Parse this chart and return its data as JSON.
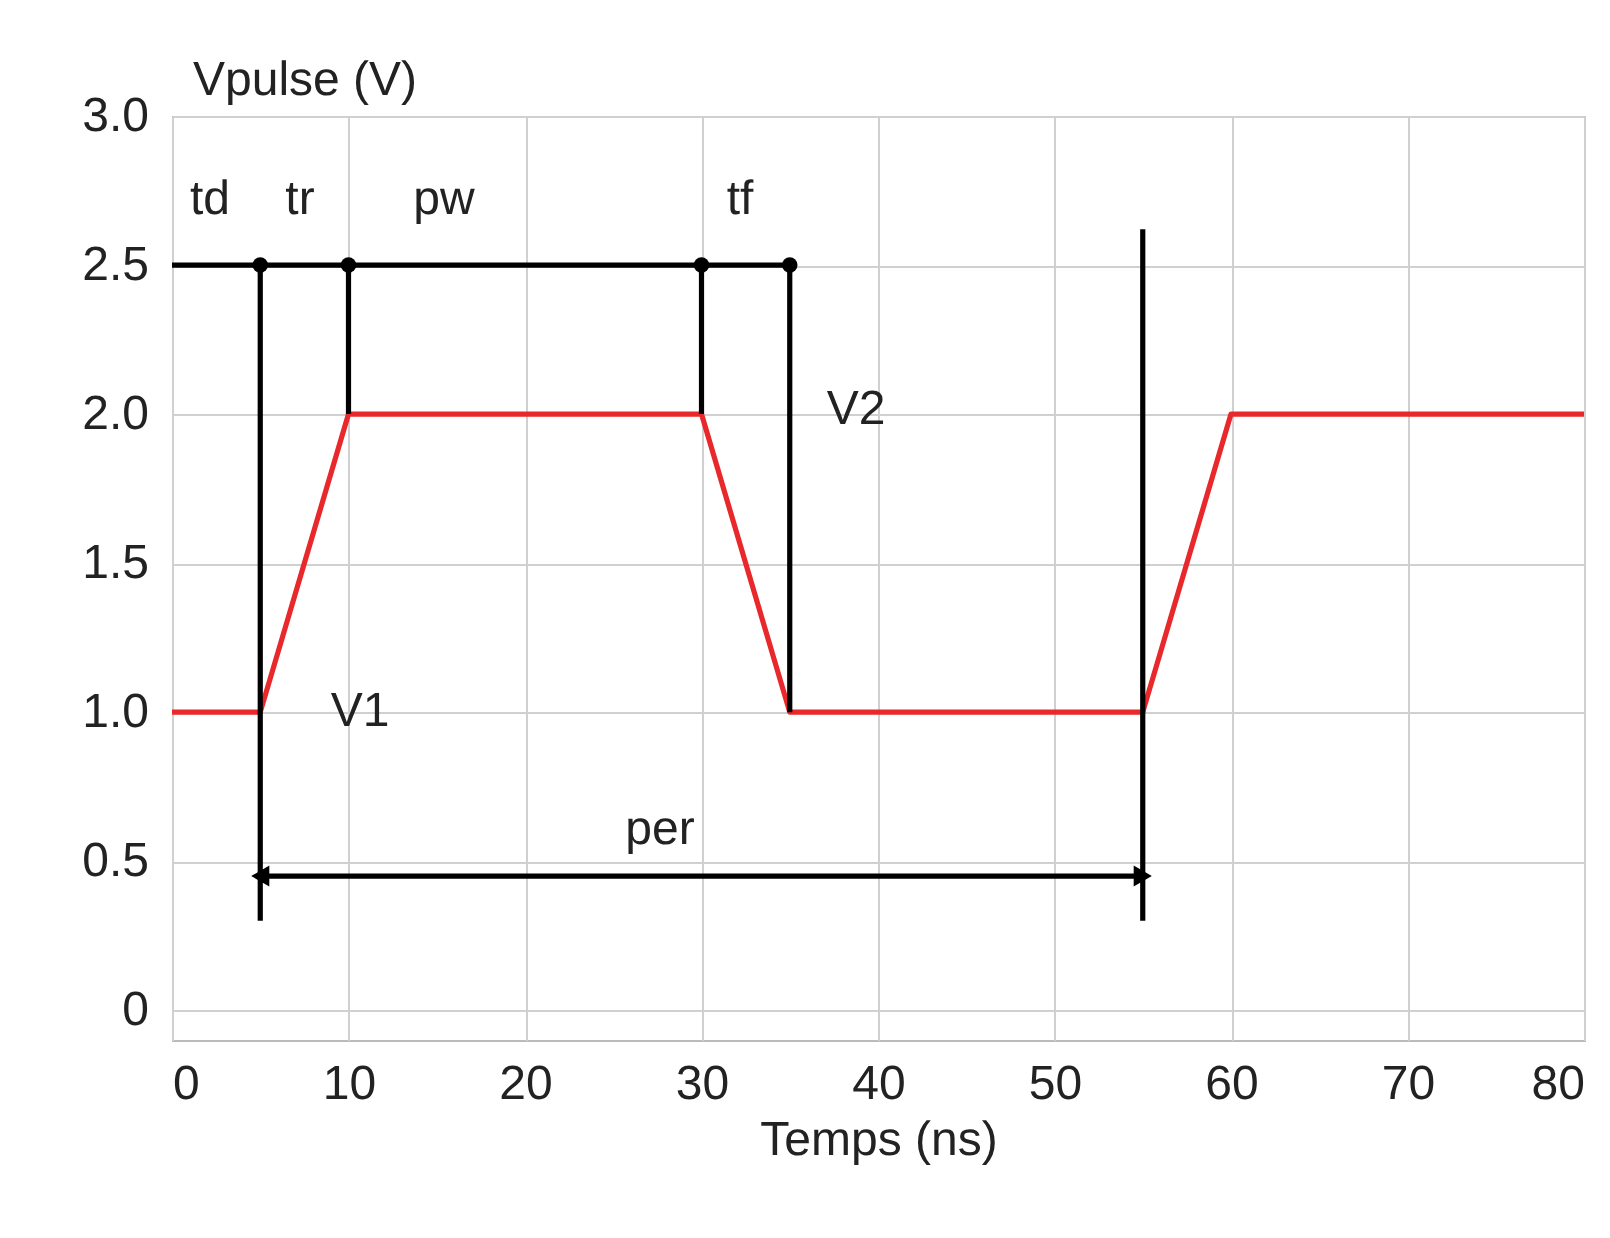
{
  "chart_data": {
    "type": "line",
    "xlabel": "Temps (ns)",
    "ylabel": "Vpulse (V)",
    "xlim": [
      0,
      80
    ],
    "xticks": [
      0,
      10,
      20,
      30,
      40,
      50,
      60,
      70,
      80
    ],
    "ylim": [
      -0.1,
      3
    ],
    "yticks": [
      0,
      0.5,
      {
        "value": 1,
        "label": "1.0"
      },
      1.5,
      {
        "value": 2,
        "label": "2.0"
      },
      2.5,
      {
        "value": 3,
        "label": "3.0"
      }
    ],
    "grid": true,
    "marker": "none",
    "line_style": "solid",
    "series": [
      {
        "color": "#e8282a",
        "x": [
          0,
          5,
          10,
          30,
          35,
          55,
          60,
          80
        ],
        "values": [
          1,
          1,
          2,
          2,
          1,
          1,
          2,
          2
        ]
      },
      {
        "color": "#000000",
        "x": [
          5,
          5
        ],
        "values": [
          0.3,
          2.5
        ]
      },
      {
        "color": "#000000",
        "x": [
          10,
          10
        ],
        "values": [
          2,
          2.5
        ]
      },
      {
        "color": "#000000",
        "x": [
          30,
          30
        ],
        "values": [
          2,
          2.5
        ]
      },
      {
        "color": "#000000",
        "x": [
          35,
          35
        ],
        "values": [
          1,
          2.5
        ]
      },
      {
        "color": "#000000",
        "x": [
          55,
          55
        ],
        "values": [
          0.3,
          2.62
        ]
      },
      {
        "color": "#000000",
        "x": [
          0,
          35
        ],
        "values": [
          2.5,
          2.5
        ]
      },
      {
        "type": "scatter",
        "marker": "circle",
        "color": "#000000",
        "x": [
          5,
          10,
          30,
          35
        ],
        "values": [
          2.5,
          2.5,
          2.5,
          2.5
        ]
      },
      {
        "color": "#000000",
        "marker": "triangle",
        "x": [
          5,
          55
        ],
        "values": [
          0.45,
          0.45
        ]
      }
    ],
    "annotations": [
      "td",
      "tr",
      "pw",
      "tf",
      "V2",
      "V1",
      "per"
    ]
  }
}
